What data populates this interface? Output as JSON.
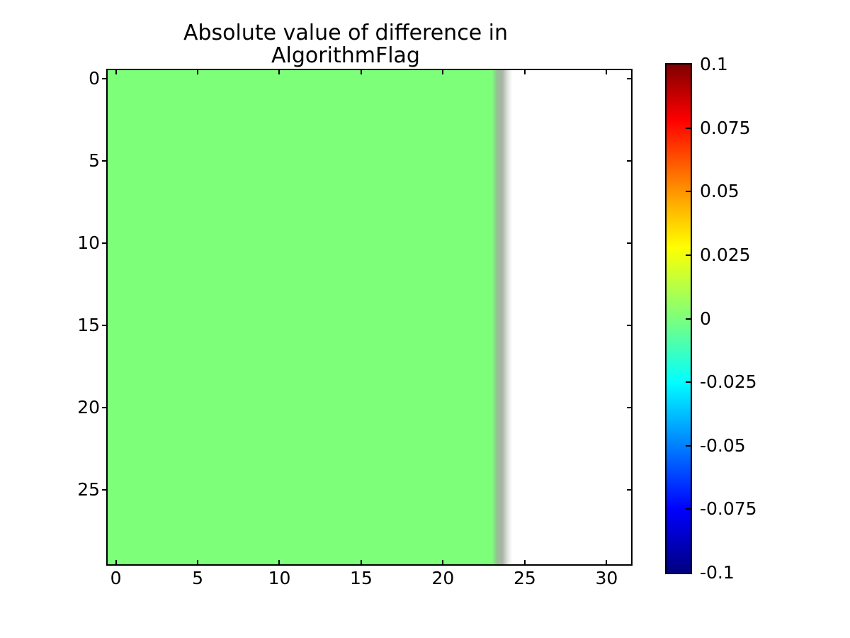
{
  "figure": {
    "background": "#ffffff",
    "text_color": "#000000"
  },
  "chart_data": {
    "type": "heatmap",
    "title": "Absolute value of difference in AlgorithmFlag",
    "title_lines": [
      "Absolute value of difference in",
      "AlgorithmFlag"
    ],
    "grid": {
      "rows": 30,
      "cols": 32
    },
    "x_range": [
      -0.5,
      31.5
    ],
    "y_range_top_to_bottom": [
      -0.5,
      29.5
    ],
    "x_ticks": [
      0,
      5,
      10,
      15,
      20,
      25,
      30
    ],
    "x_tick_labels": [
      "0",
      "5",
      "10",
      "15",
      "20",
      "25",
      "30"
    ],
    "y_ticks": [
      0,
      5,
      10,
      15,
      20,
      25
    ],
    "y_tick_labels": [
      "0",
      "5",
      "10",
      "15",
      "20",
      "25"
    ],
    "values_description": "All rows 0-29: columns 0-23 have value 0 (zero absolute difference, rendered light green); columns 24-31 are masked/blank (white), with a blurred gray interpolation edge near column 23.5",
    "regions": [
      {
        "name": "zero-difference-region",
        "col_start": 0,
        "col_end": 23,
        "value": 0,
        "color": "#7dff7a"
      },
      {
        "name": "masked-region",
        "col_start": 24,
        "col_end": 31,
        "value": null,
        "color": "#ffffff"
      }
    ],
    "heatmap_render_stops": [
      {
        "pos": 0,
        "color": "#7dff7a"
      },
      {
        "pos": 73.4,
        "color": "#7dff7a"
      },
      {
        "pos": 74.4,
        "color": "#96bf93"
      },
      {
        "pos": 75.4,
        "color": "#abb4a8"
      },
      {
        "pos": 76.5,
        "color": "#e4e7e2"
      },
      {
        "pos": 77.3,
        "color": "#ffffff"
      },
      {
        "pos": 100,
        "color": "#ffffff"
      }
    ],
    "colormap": "jet",
    "clim": [
      -0.1,
      0.1
    ],
    "colorbar": {
      "orientation": "vertical",
      "tick_labels": [
        "0.1",
        "0.075",
        "0.05",
        "0.025",
        "0",
        "-0.025",
        "-0.05",
        "-0.075",
        "-0.1"
      ],
      "tick_values": [
        0.1,
        0.075,
        0.05,
        0.025,
        0,
        -0.025,
        -0.05,
        -0.075,
        -0.1
      ],
      "marked_tick_values": [
        0.075,
        0.05,
        0.025,
        0,
        -0.025,
        -0.05,
        -0.075
      ],
      "jet_stops_top_to_bottom": [
        {
          "pos": 0,
          "color": "#800000"
        },
        {
          "pos": 11,
          "color": "#ff0000"
        },
        {
          "pos": 27,
          "color": "#ffaa00"
        },
        {
          "pos": 36,
          "color": "#ffff00"
        },
        {
          "pos": 50,
          "color": "#7cff7c"
        },
        {
          "pos": 62.5,
          "color": "#00ffff"
        },
        {
          "pos": 87.5,
          "color": "#0000ff"
        },
        {
          "pos": 100,
          "color": "#000080"
        }
      ]
    },
    "layout": {
      "grid_lines": false,
      "legend": false,
      "tick_direction": "in (bottom/top/right), out (left y-axis)"
    }
  }
}
